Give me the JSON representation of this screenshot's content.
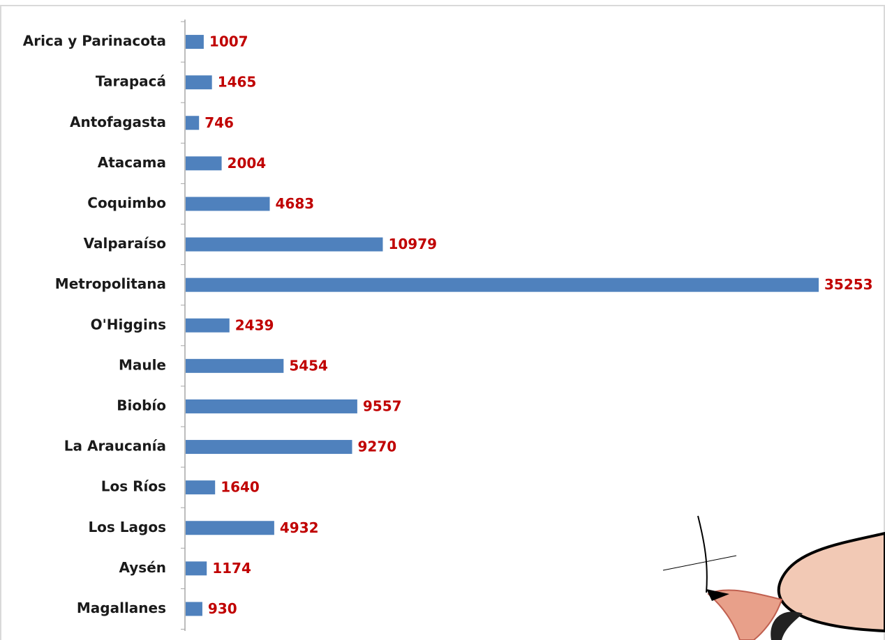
{
  "chart_data": {
    "type": "bar",
    "orientation": "horizontal",
    "categories": [
      "Arica y Parinacota",
      "Tarapacá",
      "Antofagasta",
      "Atacama",
      "Coquimbo",
      "Valparaíso",
      "Metropolitana",
      "O'Higgins",
      "Maule",
      "Biobío",
      "La Araucanía",
      "Los Ríos",
      "Los Lagos",
      "Aysén",
      "Magallanes"
    ],
    "values": [
      1007,
      1465,
      746,
      2004,
      4683,
      10979,
      35253,
      2439,
      5454,
      9557,
      9270,
      1640,
      4932,
      1174,
      930
    ],
    "color": "#4f81bd",
    "label_color": "#c00000"
  }
}
